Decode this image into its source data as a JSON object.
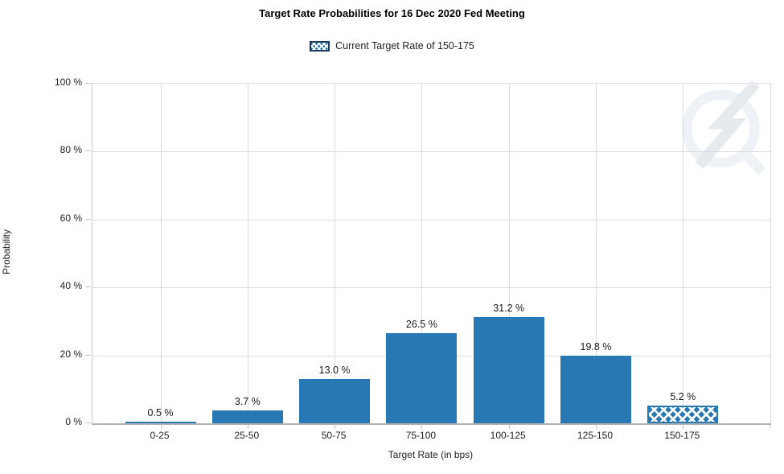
{
  "header": {
    "title": "Target Rate Probabilities for 16 Dec 2020 Fed Meeting"
  },
  "legend": {
    "label": "Current Target Rate of 150-175",
    "swatch_style": "blue-crosshatch",
    "swatch_border_color": "#17375e"
  },
  "watermark_icon": "quikstrike-lightning-q-logo",
  "chart_data": {
    "type": "bar",
    "title": "Target Rate Probabilities for 16 Dec 2020 Fed Meeting",
    "xlabel": "Target Rate (in bps)",
    "ylabel": "Probability",
    "categories": [
      "0-25",
      "25-50",
      "50-75",
      "75-100",
      "100-125",
      "125-150",
      "150-175"
    ],
    "values": [
      0.5,
      3.7,
      13.0,
      26.5,
      31.2,
      19.8,
      5.2
    ],
    "value_labels": [
      "0.5 %",
      "3.7 %",
      "13.0 %",
      "26.5 %",
      "31.2 %",
      "19.8 %",
      "5.2 %"
    ],
    "ylim": [
      0,
      100
    ],
    "yticks": [
      0,
      20,
      40,
      60,
      80,
      100
    ],
    "ytick_labels": [
      "0 %",
      "20 %",
      "40 %",
      "60 %",
      "80 %",
      "100 %"
    ],
    "grid": true,
    "legend_position": "top",
    "legend_entries": [
      {
        "label": "Current Target Rate of 150-175",
        "style": "crosshatch"
      }
    ],
    "highlighted_bar": {
      "index": 6,
      "category": "150-175",
      "style": "crosshatch"
    },
    "bar_color": "#2878b4",
    "grid_color": "#dcdcdc",
    "axis_color": "#b3b3b3",
    "text_color": "#1a1a1a"
  }
}
